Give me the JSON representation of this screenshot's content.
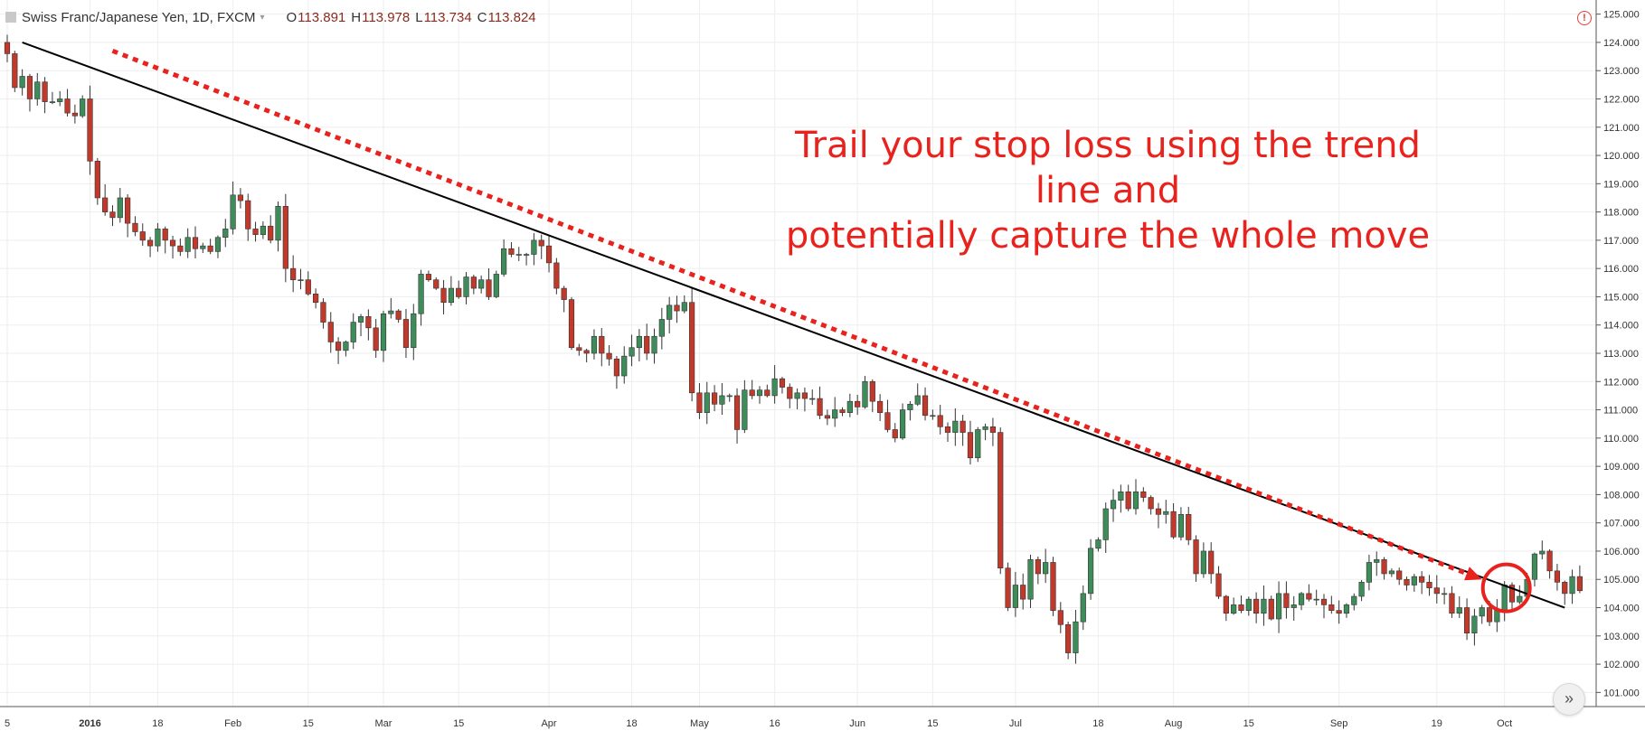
{
  "header": {
    "symbol": "Swiss Franc/Japanese Yen, 1D, FXCM",
    "caret": "▾",
    "ohlc": [
      {
        "key": "O",
        "value": "113.891"
      },
      {
        "key": "H",
        "value": "113.978"
      },
      {
        "key": "L",
        "value": "113.734"
      },
      {
        "key": "C",
        "value": "113.824"
      }
    ]
  },
  "annotation": {
    "line1": "Trail your stop loss using the trend line and",
    "line2": "potentially capture the whole move"
  },
  "alert_icon": "alert-circle-icon",
  "alert_glyph": "!",
  "scroll_glyph": "»",
  "colors": {
    "up": "#3e8c5a",
    "down": "#c0392b",
    "annotation": "#e8221c",
    "trendline": "#000000",
    "grid": "#eeeeee"
  },
  "chart_data": {
    "type": "candlestick",
    "title": "Swiss Franc/Japanese Yen, 1D, FXCM",
    "y_axis_side": "right",
    "y_range": [
      100.5,
      125.5
    ],
    "y_ticks": [
      "101.000",
      "102.000",
      "103.000",
      "104.000",
      "105.000",
      "106.000",
      "107.000",
      "108.000",
      "109.000",
      "110.000",
      "111.000",
      "112.000",
      "113.000",
      "114.000",
      "115.000",
      "116.000",
      "117.000",
      "118.000",
      "119.000",
      "120.000",
      "121.000",
      "122.000",
      "123.000",
      "124.000",
      "125.000"
    ],
    "x_ticks": [
      {
        "label": "5",
        "bar": 0
      },
      {
        "label": "2016",
        "bar": 11,
        "bold": true
      },
      {
        "label": "18",
        "bar": 20
      },
      {
        "label": "Feb",
        "bar": 30
      },
      {
        "label": "15",
        "bar": 40
      },
      {
        "label": "Mar",
        "bar": 50
      },
      {
        "label": "15",
        "bar": 60
      },
      {
        "label": "Apr",
        "bar": 72
      },
      {
        "label": "18",
        "bar": 83
      },
      {
        "label": "May",
        "bar": 92
      },
      {
        "label": "16",
        "bar": 102
      },
      {
        "label": "Jun",
        "bar": 113
      },
      {
        "label": "15",
        "bar": 123
      },
      {
        "label": "Jul",
        "bar": 134
      },
      {
        "label": "18",
        "bar": 145
      },
      {
        "label": "Aug",
        "bar": 155
      },
      {
        "label": "15",
        "bar": 165
      },
      {
        "label": "Sep",
        "bar": 177
      },
      {
        "label": "19",
        "bar": 190
      },
      {
        "label": "Oct",
        "bar": 199
      }
    ],
    "trendline": {
      "from": {
        "bar": 2,
        "price": 124.0
      },
      "to": {
        "bar": 207,
        "price": 104.0
      }
    },
    "arrow": {
      "from": {
        "bar": 14,
        "price": 123.7
      },
      "to": {
        "bar": 196,
        "price": 105.0
      }
    },
    "circle": {
      "bar": 199,
      "price": 104.7
    },
    "close": [
      123.6,
      122.4,
      122.8,
      122.0,
      122.6,
      121.9,
      121.9,
      122.0,
      121.5,
      121.4,
      122.0,
      119.8,
      118.5,
      118.0,
      117.8,
      118.5,
      117.6,
      117.3,
      117.0,
      116.8,
      117.4,
      117.0,
      116.8,
      116.6,
      117.1,
      116.7,
      116.8,
      116.6,
      117.1,
      117.4,
      118.6,
      118.4,
      117.4,
      117.2,
      117.5,
      117.0,
      118.2,
      116.0,
      115.6,
      115.6,
      115.1,
      114.8,
      114.1,
      113.4,
      113.1,
      113.4,
      114.1,
      114.3,
      113.9,
      113.1,
      114.4,
      114.5,
      114.2,
      113.2,
      114.4,
      115.8,
      115.6,
      115.3,
      114.8,
      115.3,
      115.0,
      115.7,
      115.3,
      115.6,
      115.0,
      115.8,
      116.7,
      116.5,
      116.5,
      116.5,
      117.0,
      116.8,
      116.2,
      115.3,
      114.9,
      113.2,
      113.1,
      113.0,
      113.6,
      113.0,
      112.8,
      112.2,
      112.9,
      113.2,
      113.6,
      113.0,
      113.6,
      114.2,
      114.7,
      114.5,
      114.8,
      111.6,
      110.9,
      111.6,
      111.2,
      111.5,
      111.5,
      110.3,
      111.7,
      111.5,
      111.7,
      111.5,
      112.1,
      111.8,
      111.4,
      111.6,
      111.4,
      111.4,
      110.8,
      110.7,
      111.0,
      110.9,
      111.3,
      111.1,
      112.0,
      111.3,
      110.9,
      110.3,
      110.0,
      111.0,
      111.2,
      111.5,
      110.8,
      110.8,
      110.4,
      110.2,
      110.6,
      110.2,
      109.3,
      110.3,
      110.4,
      110.2,
      105.4,
      104.0,
      104.8,
      104.3,
      105.7,
      105.2,
      105.6,
      103.9,
      103.4,
      102.4,
      103.5,
      104.5,
      106.1,
      106.4,
      107.5,
      107.8,
      108.1,
      107.5,
      108.1,
      107.9,
      107.5,
      107.3,
      107.4,
      106.5,
      107.3,
      106.4,
      105.2,
      106.0,
      105.2,
      104.4,
      103.8,
      104.1,
      103.9,
      104.3,
      103.8,
      104.3,
      103.6,
      104.5,
      104.0,
      104.1,
      104.5,
      104.3,
      104.3,
      104.1,
      103.9,
      103.8,
      104.1,
      104.4,
      104.9,
      105.6,
      105.7,
      105.2,
      105.3,
      105.0,
      104.8,
      105.1,
      104.9,
      104.7,
      104.5,
      104.5,
      103.8,
      104.0,
      103.1,
      103.7,
      104.0,
      103.5,
      103.9,
      104.8,
      104.2,
      104.4,
      105.0,
      105.9,
      106.0,
      105.3,
      104.9,
      104.5,
      105.1,
      104.6
    ]
  }
}
